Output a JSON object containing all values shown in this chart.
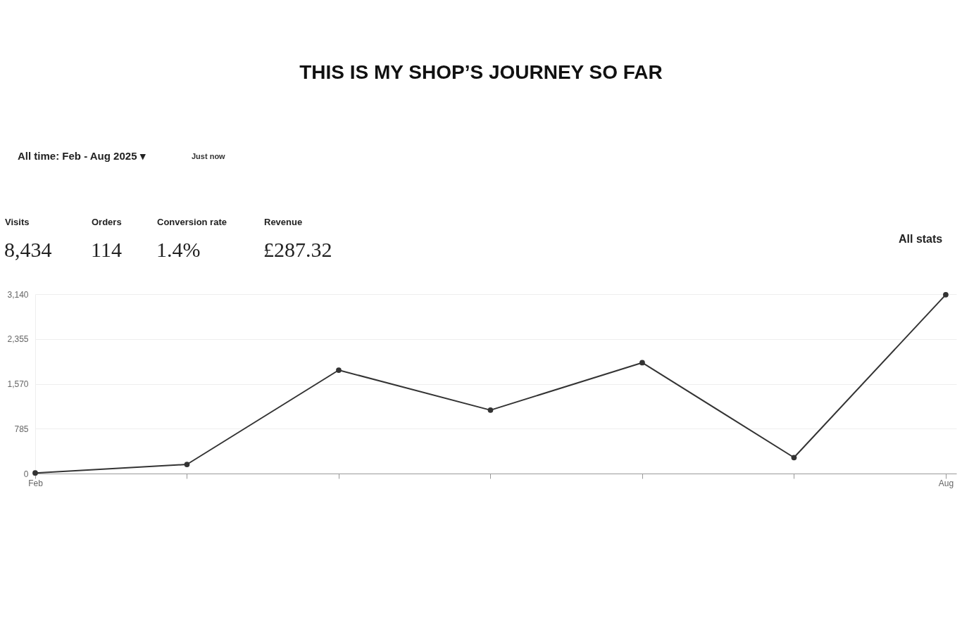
{
  "chart_data": {
    "type": "line",
    "title": "THIS IS MY SHOP’S JOURNEY SO FAR",
    "categories": [
      "Feb",
      null,
      null,
      null,
      null,
      null,
      "Aug"
    ],
    "series": [
      {
        "color": "#333333",
        "values": [
          10,
          160,
          1810,
          1110,
          1940,
          280,
          3130
        ]
      }
    ],
    "ylim": [
      0,
      3140
    ],
    "yticks": [
      0,
      785,
      {
        "value": 1570,
        "label": "1,570"
      },
      {
        "value": 2355,
        "label": "2,355"
      },
      {
        "value": 3140,
        "label": "3,140"
      }
    ],
    "grid": "y",
    "marker": "circle",
    "line_style": "solid",
    "annotations": [
      "All time: Feb - Aug 2025 ▾",
      "Just now",
      "Visits",
      "8,434",
      "Orders",
      "114",
      "Conversion rate",
      "1.4%",
      "Revenue",
      "£287.32",
      "All stats"
    ]
  }
}
